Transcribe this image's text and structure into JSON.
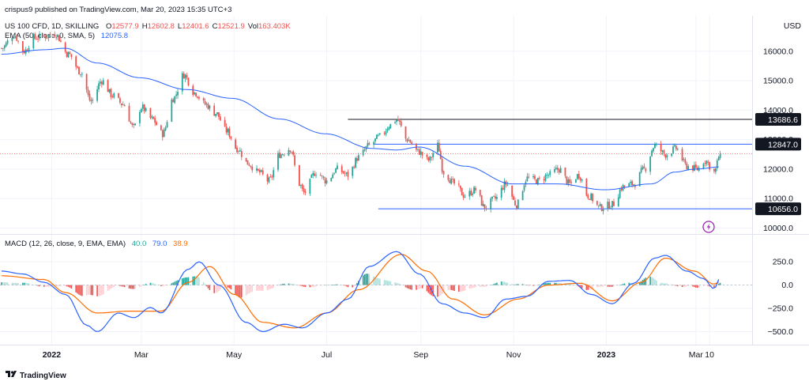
{
  "header": {
    "published": "crispus9 published on TradingView.com, Mar 20, 2023 15:35 UTC+3",
    "symbol": "US 100 CFD, 1D, SKILLING",
    "ohlc": [
      {
        "k": "O",
        "v": "12577.9"
      },
      {
        "k": "H",
        "v": "12602.8"
      },
      {
        "k": "L",
        "v": "12401.6"
      },
      {
        "k": "C",
        "v": "12521.9"
      },
      {
        "k": "Vol",
        "v": "163.403K"
      }
    ],
    "ema_label": "EMA (50, close, 0, SMA, 5)",
    "ema_value": "12075.8",
    "currency": "USD"
  },
  "macd_legend": {
    "label": "MACD (12, 26, close, 9, EMA, EMA)",
    "hist": "40.0",
    "macd": "79.0",
    "signal": "38.9"
  },
  "footer": {
    "brand": "TradingView"
  },
  "colors": {
    "up": "#26a69a",
    "down": "#ef5350",
    "ema": "#2962ff",
    "macd": "#2962ff",
    "signal": "#ff6d00",
    "hist_up": "#26a69a",
    "hist_up_light": "#b2dfdb",
    "hist_down": "#ef5350",
    "hist_down_light": "#ffcdd2",
    "level_line": "#2962ff",
    "black_line": "#131722",
    "last_price": "#ef5350",
    "badge": "#131722",
    "lightning": "#9c27b0"
  },
  "icons": {
    "lightning": "lightning-icon",
    "logo": "tradingview-logo-icon"
  },
  "chart_data": [
    {
      "type": "candlestick",
      "ylabel": "USD",
      "ylim": [
        9800,
        17200
      ],
      "y_ticks": [
        10000,
        11000,
        12000,
        13000,
        14000,
        15000,
        16000
      ],
      "y_tick_labels": [
        "10000.0",
        "11000.0",
        "12000.0",
        "13000.0",
        "14000.0",
        "15000.0",
        "16000.0"
      ],
      "x_tick_labels": [
        "2022",
        "Mar",
        "May",
        "Jul",
        "Sep",
        "Nov",
        "2023",
        "Mar",
        "10"
      ],
      "x_tick_dates": [
        "2022-01-01",
        "2022-03-01",
        "2022-05-01",
        "2022-07-01",
        "2022-09-01",
        "2022-11-01",
        "2023-01-01",
        "2023-03-01",
        "2023-03-10"
      ],
      "x_range": [
        "2021-11-28",
        "2023-04-07"
      ],
      "price_path": [
        [
          "2021-11-29",
          16100
        ],
        [
          "2021-12-07",
          16550
        ],
        [
          "2021-12-14",
          16000
        ],
        [
          "2021-12-20",
          16450
        ],
        [
          "2021-12-27",
          16500
        ],
        [
          "2022-01-03",
          16600
        ],
        [
          "2022-01-12",
          15900
        ],
        [
          "2022-01-20",
          15300
        ],
        [
          "2022-01-27",
          14300
        ],
        [
          "2022-02-03",
          15000
        ],
        [
          "2022-02-10",
          14500
        ],
        [
          "2022-02-17",
          14200
        ],
        [
          "2022-02-24",
          13400
        ],
        [
          "2022-03-01",
          14100
        ],
        [
          "2022-03-08",
          13700
        ],
        [
          "2022-03-15",
          13200
        ],
        [
          "2022-03-22",
          14400
        ],
        [
          "2022-03-29",
          15200
        ],
        [
          "2022-04-05",
          14600
        ],
        [
          "2022-04-12",
          14200
        ],
        [
          "2022-04-19",
          13900
        ],
        [
          "2022-04-26",
          13300
        ],
        [
          "2022-05-03",
          12700
        ],
        [
          "2022-05-10",
          12200
        ],
        [
          "2022-05-17",
          11900
        ],
        [
          "2022-05-24",
          11600
        ],
        [
          "2022-05-31",
          12500
        ],
        [
          "2022-06-07",
          12700
        ],
        [
          "2022-06-13",
          11500
        ],
        [
          "2022-06-16",
          11200
        ],
        [
          "2022-06-24",
          11900
        ],
        [
          "2022-07-01",
          11600
        ],
        [
          "2022-07-08",
          12000
        ],
        [
          "2022-07-15",
          11800
        ],
        [
          "2022-07-22",
          12400
        ],
        [
          "2022-07-29",
          12800
        ],
        [
          "2022-08-05",
          13100
        ],
        [
          "2022-08-12",
          13500
        ],
        [
          "2022-08-16",
          13680
        ],
        [
          "2022-08-23",
          13000
        ],
        [
          "2022-08-30",
          12600
        ],
        [
          "2022-09-06",
          12300
        ],
        [
          "2022-09-12",
          12800
        ],
        [
          "2022-09-16",
          11900
        ],
        [
          "2022-09-23",
          11500
        ],
        [
          "2022-09-30",
          11100
        ],
        [
          "2022-10-07",
          11300
        ],
        [
          "2022-10-13",
          10700
        ],
        [
          "2022-10-20",
          11000
        ],
        [
          "2022-10-27",
          11500
        ],
        [
          "2022-11-03",
          10800
        ],
        [
          "2022-11-10",
          11700
        ],
        [
          "2022-11-17",
          11600
        ],
        [
          "2022-11-24",
          11800
        ],
        [
          "2022-12-01",
          12000
        ],
        [
          "2022-12-08",
          11500
        ],
        [
          "2022-12-14",
          11800
        ],
        [
          "2022-12-20",
          11100
        ],
        [
          "2022-12-28",
          10700
        ],
        [
          "2023-01-05",
          10800
        ],
        [
          "2023-01-12",
          11400
        ],
        [
          "2023-01-19",
          11500
        ],
        [
          "2023-01-26",
          12000
        ],
        [
          "2023-02-02",
          12800
        ],
        [
          "2023-02-09",
          12500
        ],
        [
          "2023-02-16",
          12700
        ],
        [
          "2023-02-23",
          12100
        ],
        [
          "2023-03-02",
          12000
        ],
        [
          "2023-03-07",
          12300
        ],
        [
          "2023-03-13",
          11900
        ],
        [
          "2023-03-17",
          12520
        ]
      ],
      "ema_path": [
        [
          "2021-11-29",
          15900
        ],
        [
          "2021-12-27",
          16050
        ],
        [
          "2022-01-10",
          16100
        ],
        [
          "2022-01-31",
          15600
        ],
        [
          "2022-02-28",
          15100
        ],
        [
          "2022-03-31",
          14700
        ],
        [
          "2022-04-30",
          14400
        ],
        [
          "2022-05-31",
          13700
        ],
        [
          "2022-06-30",
          13200
        ],
        [
          "2022-07-31",
          12700
        ],
        [
          "2022-08-16",
          12650
        ],
        [
          "2022-08-31",
          12750
        ],
        [
          "2022-09-30",
          12100
        ],
        [
          "2022-10-31",
          11500
        ],
        [
          "2022-11-30",
          11500
        ],
        [
          "2022-12-31",
          11300
        ],
        [
          "2023-01-31",
          11500
        ],
        [
          "2023-02-15",
          11900
        ],
        [
          "2023-02-28",
          12000
        ],
        [
          "2023-03-17",
          12075.8
        ]
      ],
      "horizontal_levels": [
        {
          "value": 13686.6,
          "label": "13686.6",
          "color": "#131722",
          "from": "2022-07-15"
        },
        {
          "value": 12847.0,
          "label": "12847.0",
          "color": "#2962ff",
          "from": "2022-08-01"
        },
        {
          "value": 10656.0,
          "label": "10656.0",
          "color": "#2962ff",
          "from": "2022-08-04"
        }
      ],
      "last_price": 12521.9
    },
    {
      "type": "macd",
      "ylim": [
        -640,
        540
      ],
      "y_ticks": [
        250,
        0,
        -250,
        -500
      ],
      "y_tick_labels": [
        "250.0",
        "0.0",
        "−250.0",
        "−500.0"
      ],
      "macd_path": [
        [
          "2021-11-29",
          150
        ],
        [
          "2021-12-13",
          120
        ],
        [
          "2021-12-27",
          30
        ],
        [
          "2022-01-10",
          -100
        ],
        [
          "2022-01-24",
          -430
        ],
        [
          "2022-01-31",
          -500
        ],
        [
          "2022-02-14",
          -300
        ],
        [
          "2022-02-24",
          -350
        ],
        [
          "2022-03-07",
          -240
        ],
        [
          "2022-03-14",
          -300
        ],
        [
          "2022-04-01",
          170
        ],
        [
          "2022-04-08",
          250
        ],
        [
          "2022-04-21",
          0
        ],
        [
          "2022-05-09",
          -400
        ],
        [
          "2022-05-20",
          -500
        ],
        [
          "2022-06-03",
          -420
        ],
        [
          "2022-06-15",
          -460
        ],
        [
          "2022-07-01",
          -300
        ],
        [
          "2022-07-15",
          -150
        ],
        [
          "2022-07-29",
          200
        ],
        [
          "2022-08-16",
          360
        ],
        [
          "2022-08-31",
          120
        ],
        [
          "2022-09-15",
          -200
        ],
        [
          "2022-09-30",
          -300
        ],
        [
          "2022-10-13",
          -350
        ],
        [
          "2022-10-27",
          -150
        ],
        [
          "2022-11-10",
          -120
        ],
        [
          "2022-11-24",
          40
        ],
        [
          "2022-12-08",
          50
        ],
        [
          "2022-12-22",
          -100
        ],
        [
          "2023-01-05",
          -200
        ],
        [
          "2023-01-19",
          20
        ],
        [
          "2023-02-02",
          290
        ],
        [
          "2023-02-09",
          320
        ],
        [
          "2023-02-23",
          150
        ],
        [
          "2023-03-06",
          70
        ],
        [
          "2023-03-13",
          -40
        ],
        [
          "2023-03-17",
          79
        ]
      ],
      "signal_path": [
        [
          "2021-11-29",
          100
        ],
        [
          "2021-12-27",
          60
        ],
        [
          "2022-01-10",
          -80
        ],
        [
          "2022-01-31",
          -300
        ],
        [
          "2022-02-21",
          -280
        ],
        [
          "2022-03-14",
          -280
        ],
        [
          "2022-04-01",
          30
        ],
        [
          "2022-04-15",
          200
        ],
        [
          "2022-05-01",
          -100
        ],
        [
          "2022-05-20",
          -400
        ],
        [
          "2022-06-10",
          -460
        ],
        [
          "2022-07-01",
          -300
        ],
        [
          "2022-07-22",
          -50
        ],
        [
          "2022-08-19",
          330
        ],
        [
          "2022-09-05",
          150
        ],
        [
          "2022-09-22",
          -150
        ],
        [
          "2022-10-13",
          -320
        ],
        [
          "2022-11-04",
          -150
        ],
        [
          "2022-11-24",
          0
        ],
        [
          "2022-12-15",
          20
        ],
        [
          "2023-01-05",
          -170
        ],
        [
          "2023-01-24",
          30
        ],
        [
          "2023-02-09",
          290
        ],
        [
          "2023-02-28",
          150
        ],
        [
          "2023-03-13",
          10
        ],
        [
          "2023-03-17",
          38.9
        ]
      ],
      "histogram_window": 9
    }
  ]
}
